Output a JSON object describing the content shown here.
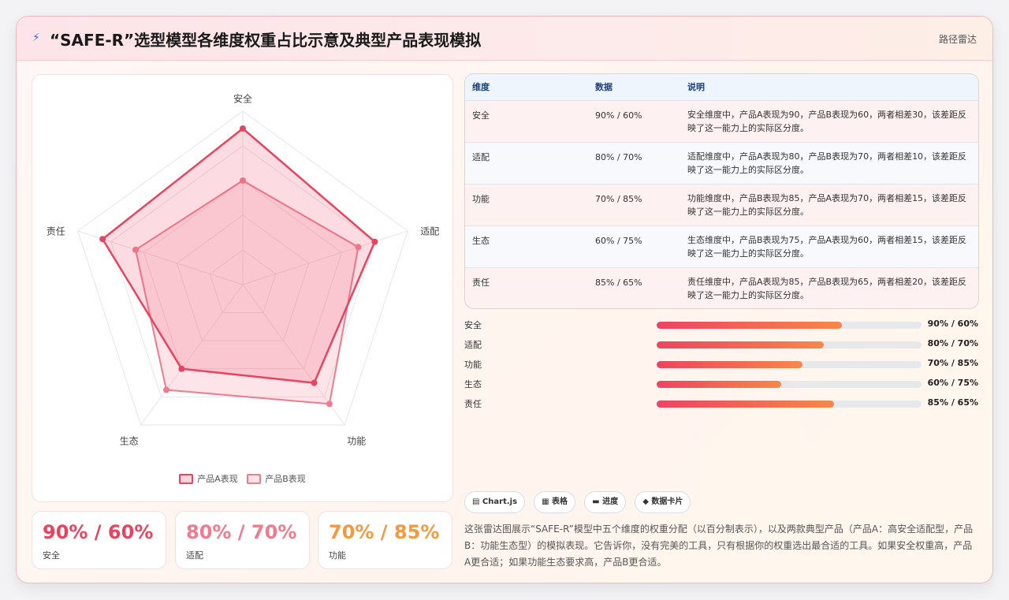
{
  "header": {
    "title": "“SAFE-R”选型模型各维度权重占比示意及典型产品表现模拟",
    "tag": "路径雷达"
  },
  "chart_data": {
    "type": "radar",
    "categories": [
      "安全",
      "适配",
      "功能",
      "生态",
      "责任"
    ],
    "series": [
      {
        "name": "产品A表现",
        "values": [
          90,
          80,
          70,
          60,
          85
        ],
        "color": "#e8435f"
      },
      {
        "name": "产品B表现",
        "values": [
          60,
          70,
          85,
          75,
          65
        ],
        "color": "#ef7b8e"
      }
    ],
    "rlim": [
      0,
      100
    ],
    "grid": true,
    "legend": "bottom"
  },
  "stats": [
    {
      "value": "90% / 60%",
      "label": "安全",
      "color": "#e8435f"
    },
    {
      "value": "80% / 70%",
      "label": "适配",
      "color": "#ef7b8e"
    },
    {
      "value": "70% / 85%",
      "label": "功能",
      "color": "#f29a43"
    }
  ],
  "table": {
    "headers": [
      "维度",
      "数据",
      "说明"
    ],
    "rows": [
      {
        "dim": "安全",
        "data": "90% / 60%",
        "note": "安全维度中，产品A表现为90，产品B表现为60，两者相差30，该差距反映了这一能力上的实际区分度。"
      },
      {
        "dim": "适配",
        "data": "80% / 70%",
        "note": "适配维度中，产品A表现为80，产品B表现为70，两者相差10，该差距反映了这一能力上的实际区分度。"
      },
      {
        "dim": "功能",
        "data": "70% / 85%",
        "note": "功能维度中，产品B表现为85，产品A表现为70，两者相差15，该差距反映了这一能力上的实际区分度。"
      },
      {
        "dim": "生态",
        "data": "60% / 75%",
        "note": "生态维度中，产品B表现为75，产品A表现为60，两者相差15，该差距反映了这一能力上的实际区分度。"
      },
      {
        "dim": "责任",
        "data": "85% / 65%",
        "note": "责任维度中，产品A表现为85，产品B表现为65，两者相差20，该差距反映了这一能力上的实际区分度。"
      }
    ]
  },
  "bars": [
    {
      "name": "安全",
      "fill": 0.7,
      "text": "90% / 60%"
    },
    {
      "name": "适配",
      "fill": 0.63,
      "text": "80% / 70%"
    },
    {
      "name": "功能",
      "fill": 0.55,
      "text": "70% / 85%"
    },
    {
      "name": "生态",
      "fill": 0.47,
      "text": "60% / 75%"
    },
    {
      "name": "责任",
      "fill": 0.67,
      "text": "85% / 65%"
    }
  ],
  "chips": [
    {
      "icon": "table-icon",
      "label": "▤ Chart.js"
    },
    {
      "icon": "grid-icon",
      "label": "▦ 表格"
    },
    {
      "icon": "progress-icon",
      "label": "▬ 进度"
    },
    {
      "icon": "diamond-icon",
      "label": "◆ 数据卡片"
    }
  ],
  "description": "这张雷达图展示“SAFE-R”模型中五个维度的权重分配（以百分制表示），以及两款典型产品（产品A：高安全适配型，产品B：功能生态型）的模拟表现。它告诉你，没有完美的工具，只有根据你的权重选出最合适的工具。如果安全权重高，产品A更合适；如果功能生态要求高，产品B更合适。"
}
